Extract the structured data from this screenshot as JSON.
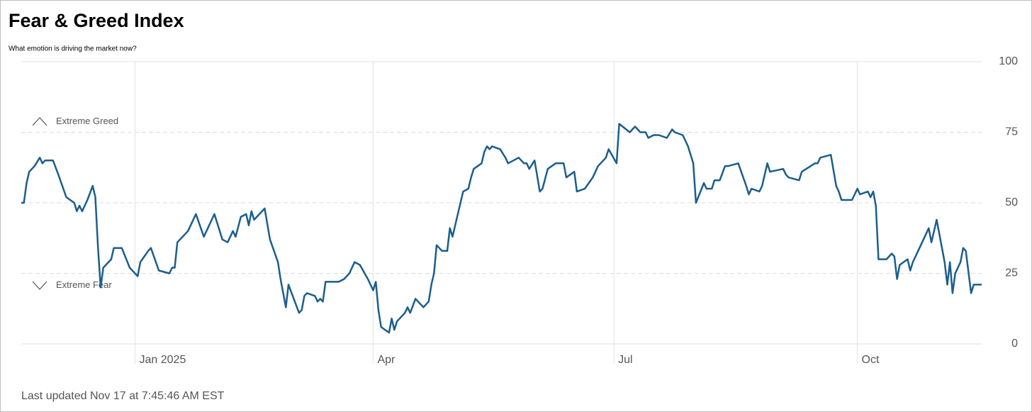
{
  "chart_data": {
    "type": "line",
    "title": "Fear & Greed Index",
    "subtitle": "What emotion is driving the market now?",
    "annotations": [
      "Extreme Greed",
      "Extreme Fear"
    ],
    "footer": "Last updated Nov 17 at 7:45:46 AM EST",
    "x": [
      -43,
      -42,
      -41,
      -40,
      -38,
      -36,
      -35,
      -34,
      -31,
      -29,
      -26,
      -23,
      -22,
      -21,
      -20,
      -18,
      -16,
      -15,
      -14,
      -13,
      -12,
      -9,
      -8,
      -5,
      -2,
      1,
      2,
      5,
      6,
      9,
      13,
      14,
      15,
      16,
      20,
      23,
      26,
      30,
      33,
      35,
      37,
      38,
      40,
      42,
      43,
      44,
      45,
      49,
      51,
      54,
      55,
      57,
      58,
      62,
      63,
      64,
      65,
      68,
      69,
      70,
      71,
      72,
      74,
      76,
      77,
      79,
      81,
      83,
      85,
      88,
      90,
      91,
      92,
      93,
      96,
      97,
      98,
      99,
      102,
      103,
      104,
      106,
      109,
      111,
      112,
      113,
      114,
      116,
      118,
      119,
      120,
      124,
      126,
      127,
      128,
      131,
      132,
      133,
      134,
      135,
      138,
      140,
      141,
      145,
      147,
      148,
      149,
      151,
      153,
      154,
      156,
      159,
      162,
      163,
      166,
      167,
      170,
      173,
      175,
      178,
      179,
      182,
      183,
      187,
      189,
      191,
      193,
      194,
      196,
      198,
      201,
      203,
      204,
      207,
      209,
      211,
      212,
      215,
      216,
      218,
      219,
      221,
      223,
      224,
      228,
      231,
      232,
      233,
      236,
      237,
      239,
      240,
      245,
      246,
      247,
      251,
      252,
      257,
      258,
      259,
      263,
      265,
      266,
      267,
      270,
      271,
      273,
      274,
      277,
      278,
      279,
      280,
      281,
      284,
      286,
      287,
      288,
      289,
      292,
      293,
      294,
      296,
      300,
      301,
      303,
      306,
      307,
      308,
      309,
      310,
      312,
      313,
      314,
      316,
      317,
      320
    ],
    "series": [
      {
        "name": "Fear & Greed Index",
        "color": "#1b5e8c",
        "values": [
          50,
          50,
          57,
          61,
          63,
          66,
          64,
          65,
          65,
          60,
          52,
          50,
          47,
          49,
          47,
          51,
          56,
          52,
          34,
          20,
          27,
          30,
          34,
          34,
          27,
          24,
          29,
          33,
          34,
          26,
          25,
          27,
          27,
          36,
          40,
          46,
          38,
          46,
          37,
          36,
          40,
          38,
          45,
          46,
          42,
          47,
          44,
          48,
          37,
          29,
          23,
          13,
          21,
          11,
          12,
          17,
          18,
          17,
          15,
          16,
          15,
          22,
          22,
          22,
          22,
          23,
          25,
          29,
          28,
          23,
          19,
          22,
          12,
          6,
          4,
          9,
          5,
          8,
          11,
          13,
          11,
          16,
          13,
          15,
          21,
          25,
          35,
          33,
          33,
          41,
          38,
          54,
          55,
          59,
          62,
          64,
          68,
          70,
          69,
          70,
          69,
          66,
          64,
          66,
          64,
          64,
          62,
          65,
          54,
          55,
          62,
          64,
          64,
          59,
          61,
          54,
          55,
          59,
          63,
          66,
          69,
          64,
          78,
          75,
          77,
          75,
          75,
          73,
          74,
          74,
          73,
          76,
          75,
          74,
          70,
          64,
          50,
          57,
          55,
          55,
          58,
          58,
          63,
          63,
          64,
          56,
          53,
          55,
          54,
          56,
          64,
          61,
          62,
          60,
          59,
          58,
          61,
          64,
          64,
          66,
          67,
          56,
          54,
          51,
          51,
          51,
          55,
          53,
          54,
          52,
          54,
          49,
          30,
          30,
          32,
          31,
          23,
          28,
          30,
          26,
          29,
          33,
          41,
          36,
          44,
          29,
          21,
          29,
          18,
          25,
          29,
          34,
          33,
          18,
          21,
          21
        ]
      }
    ],
    "xlim": [
      -43,
      320
    ],
    "xticks": [
      {
        "value": 0,
        "label": "Jan 2025"
      },
      {
        "value": 90,
        "label": "Apr"
      },
      {
        "value": 181,
        "label": "Jul"
      },
      {
        "value": 273,
        "label": "Oct"
      }
    ],
    "ylim": [
      0,
      100
    ],
    "yticks": [
      0,
      25,
      50,
      75,
      100
    ],
    "annotation_levels": [
      75,
      25
    ],
    "grid": true
  }
}
